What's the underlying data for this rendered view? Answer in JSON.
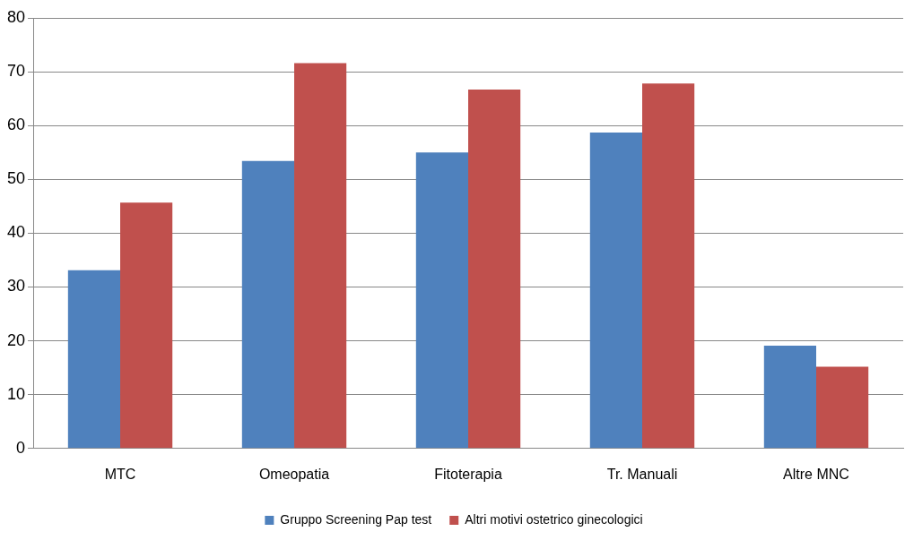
{
  "chart_data": {
    "type": "bar",
    "categories": [
      "MTC",
      "Omeopatia",
      "Fitoterapia",
      "Tr. Manuali",
      "Altre MNC"
    ],
    "series": [
      {
        "name": "Gruppo Screening Pap test",
        "color": "#4f81bd",
        "values": [
          33.1,
          53.4,
          55.0,
          58.7,
          19.1
        ]
      },
      {
        "name": "Altri motivi ostetrico ginecologici",
        "color": "#c0504d",
        "values": [
          45.7,
          71.6,
          66.7,
          67.8,
          15.2
        ]
      }
    ],
    "ylim": [
      0,
      80
    ],
    "yticks": [
      0,
      10,
      20,
      30,
      40,
      50,
      60,
      70,
      80
    ],
    "grid": "y",
    "legend": "bottom"
  }
}
